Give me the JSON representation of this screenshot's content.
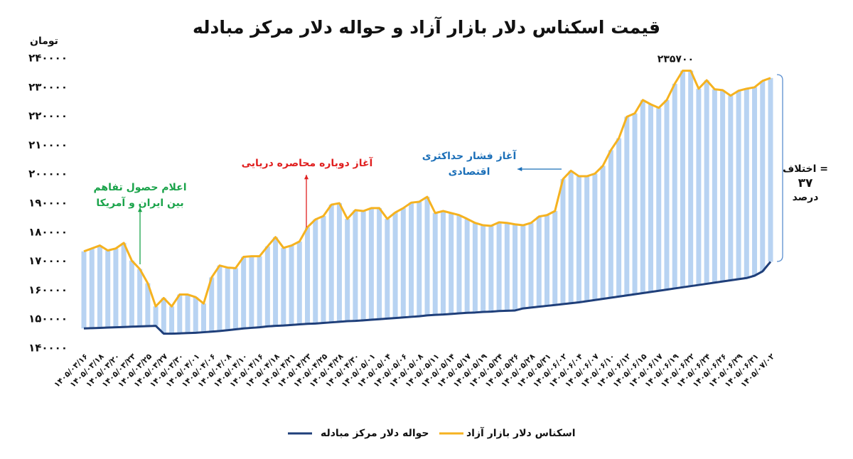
{
  "chart_data": {
    "type": "line",
    "title": "قیمت اسکناس دلار بازار آزاد و حواله دلار مرکز مبادله",
    "y_label": "تومان",
    "categories": [
      "۱۴۰۵/۰۳/۱۶",
      null,
      "۱۴۰۵/۰۳/۱۸",
      null,
      "۱۴۰۵/۰۳/۲۰",
      null,
      "۱۴۰۵/۰۳/۲۳",
      null,
      "۱۴۰۵/۰۳/۲۵",
      null,
      "۱۴۰۵/۰۳/۲۷",
      null,
      "۱۴۰۵/۰۳/۳۰",
      null,
      "۱۴۰۵/۰۴/۰۱",
      null,
      "۱۴۰۵/۰۴/۰۶",
      null,
      "۱۴۰۵/۰۴/۰۸",
      null,
      "۱۴۰۵/۰۴/۱۰",
      null,
      "۱۴۰۵/۰۴/۱۶",
      null,
      "۱۴۰۵/۰۴/۱۸",
      null,
      "۱۴۰۵/۰۴/۲۱",
      null,
      "۱۴۰۵/۰۴/۲۳",
      null,
      "۱۴۰۵/۰۴/۲۵",
      null,
      "۱۴۰۵/۰۴/۲۸",
      null,
      "۱۴۰۵/۰۴/۳۰",
      null,
      "۱۴۰۵/۰۵/۰۱",
      null,
      "۱۴۰۵/۰۵/۰۴",
      null,
      "۱۴۰۵/۰۵/۰۶",
      null,
      "۱۴۰۵/۰۵/۰۸",
      null,
      "۱۴۰۵/۰۵/۱۱",
      null,
      "۱۴۰۵/۰۵/۱۴",
      null,
      "۱۴۰۵/۰۵/۱۷",
      null,
      "۱۴۰۵/۰۵/۱۹",
      null,
      "۱۴۰۵/۰۵/۲۴",
      null,
      "۱۴۰۵/۰۵/۲۶",
      null,
      "۱۴۰۵/۰۵/۲۸",
      null,
      "۱۴۰۵/۰۵/۳۱",
      null,
      "۱۴۰۵/۰۶/۰۲",
      null,
      "۱۴۰۵/۰۶/۰۴",
      null,
      "۱۴۰۵/۰۶/۰۷",
      null,
      "۱۴۰۵/۰۶/۱۰",
      null,
      "۱۴۰۵/۰۶/۱۲",
      null,
      "۱۴۰۵/۰۶/۱۵",
      null,
      "۱۴۰۵/۰۶/۱۷",
      null,
      "۱۴۰۵/۰۶/۱۹",
      null,
      "۱۴۰۵/۰۶/۲۲",
      null,
      "۱۴۰۵/۰۶/۲۴",
      null,
      "۱۴۰۵/۰۶/۲۶",
      null,
      "۱۴۰۵/۰۶/۲۹",
      null,
      "۱۴۰۵/۰۶/۳۱",
      null,
      "۱۴۰۵/۰۷/۰۲"
    ],
    "series": [
      {
        "name": "اسکناس دلار بازار آزاد",
        "color": "#f5b220",
        "values": [
          173400,
          174400,
          175400,
          173700,
          174400,
          176300,
          170200,
          167300,
          162400,
          154400,
          157300,
          154400,
          158500,
          158500,
          157600,
          155400,
          164400,
          168500,
          167800,
          167600,
          171500,
          171700,
          171700,
          175100,
          178300,
          174600,
          175400,
          176800,
          181700,
          184400,
          185600,
          189500,
          190000,
          184600,
          187600,
          187300,
          188300,
          188300,
          184600,
          186800,
          188300,
          190200,
          190500,
          192200,
          186600,
          187300,
          186600,
          185900,
          184600,
          183200,
          182400,
          182200,
          183400,
          183200,
          182700,
          182400,
          183200,
          185400,
          185900,
          187300,
          198300,
          201200,
          199300,
          199300,
          200200,
          202900,
          208300,
          212400,
          219800,
          221000,
          225600,
          224100,
          222900,
          225600,
          231200,
          235700,
          235700,
          229500,
          232400,
          229300,
          229000,
          227100,
          228800,
          229500,
          230000,
          232200,
          233200
        ]
      },
      {
        "name": "حواله دلار مرکز مبادله",
        "color": "#1f3f7a",
        "values": [
          146800,
          146900,
          147000,
          147100,
          147200,
          147300,
          147400,
          147500,
          147600,
          147700,
          145000,
          145000,
          145100,
          145200,
          145300,
          145500,
          145700,
          145900,
          146200,
          146500,
          146800,
          147000,
          147200,
          147500,
          147700,
          147800,
          148000,
          148200,
          148400,
          148500,
          148700,
          148900,
          149100,
          149300,
          149400,
          149600,
          149800,
          150000,
          150200,
          150400,
          150600,
          150800,
          151000,
          151300,
          151500,
          151600,
          151800,
          152000,
          152200,
          152300,
          152500,
          152600,
          152800,
          152900,
          153000,
          153700,
          154000,
          154300,
          154600,
          154900,
          155200,
          155500,
          155800,
          156200,
          156600,
          157000,
          157400,
          157800,
          158200,
          158600,
          159000,
          159400,
          159800,
          160200,
          160600,
          161000,
          161400,
          161800,
          162200,
          162600,
          163000,
          163400,
          163800,
          164200,
          165000,
          166500,
          169800
        ]
      }
    ],
    "band_color": "#b8d3f2",
    "ylim": [
      140000,
      240000
    ],
    "yticks": [
      {
        "value": 140000,
        "label": "۱۴۰۰۰۰"
      },
      {
        "value": 150000,
        "label": "۱۵۰۰۰۰"
      },
      {
        "value": 160000,
        "label": "۱۶۰۰۰۰"
      },
      {
        "value": 170000,
        "label": "۱۷۰۰۰۰"
      },
      {
        "value": 180000,
        "label": "۱۸۰۰۰۰"
      },
      {
        "value": 190000,
        "label": "۱۹۰۰۰۰"
      },
      {
        "value": 200000,
        "label": "۲۰۰۰۰۰"
      },
      {
        "value": 210000,
        "label": "۲۱۰۰۰۰"
      },
      {
        "value": 220000,
        "label": "۲۲۰۰۰۰"
      },
      {
        "value": 230000,
        "label": "۲۳۰۰۰۰"
      },
      {
        "value": 240000,
        "label": "۲۴۰۰۰۰"
      }
    ],
    "peak_label": "۲۳۵۷۰۰",
    "annotations": [
      {
        "lines": [
          "اعلام حصول تفاهم",
          "بین ایران و آمریکا"
        ],
        "color": "#1aa34a"
      },
      {
        "lines": [
          "آغاز دوباره محاصره دریایی"
        ],
        "color": "#e02020"
      },
      {
        "lines": [
          "آغاز فشار حداکثری",
          "اقتصادی"
        ],
        "color": "#1b6fb8"
      },
      {
        "lines": [
          "اختلاف =",
          "۳۷",
          "درصد"
        ],
        "color": "#111111"
      }
    ]
  }
}
